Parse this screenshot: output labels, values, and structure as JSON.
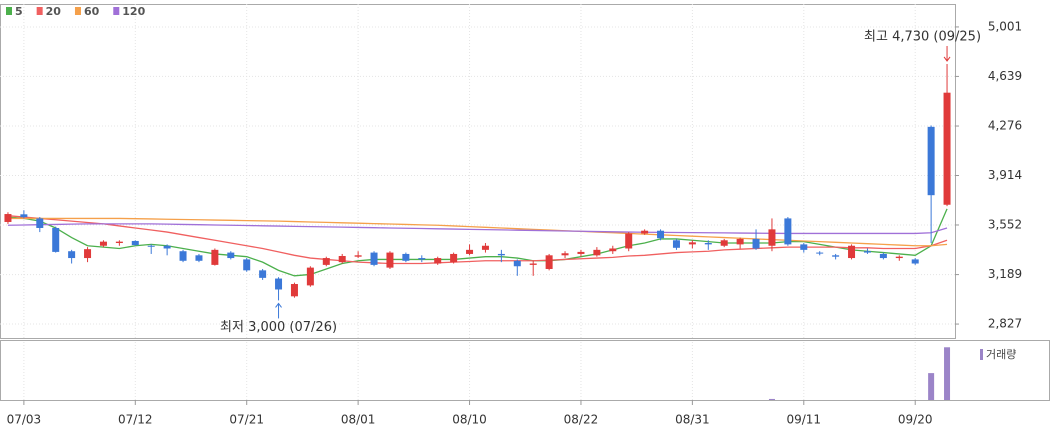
{
  "chart_data": {
    "type": "candlestick",
    "categories": [
      null,
      "07/03",
      null,
      null,
      null,
      null,
      null,
      null,
      "07/12",
      null,
      null,
      null,
      null,
      null,
      null,
      "07/21",
      null,
      null,
      null,
      null,
      null,
      null,
      "08/01",
      null,
      null,
      null,
      null,
      null,
      null,
      "08/10",
      null,
      null,
      null,
      null,
      null,
      null,
      "08/22",
      null,
      null,
      null,
      null,
      null,
      null,
      "08/31",
      null,
      null,
      null,
      null,
      null,
      null,
      "09/11",
      null,
      null,
      null,
      null,
      null,
      null,
      "09/20",
      null,
      null
    ],
    "ohlc": {
      "open": [
        3574,
        3630,
        3600,
        3530,
        3360,
        3310,
        3400,
        3420,
        3435,
        3400,
        3400,
        3360,
        3330,
        3260,
        3350,
        3300,
        3220,
        3160,
        3030,
        3110,
        3260,
        3280,
        3320,
        3350,
        3240,
        3340,
        3310,
        3270,
        3280,
        3340,
        3370,
        3340,
        3290,
        3260,
        3230,
        3330,
        3340,
        3330,
        3360,
        3380,
        3490,
        3510,
        3440,
        3410,
        3420,
        3400,
        3410,
        3450,
        3400,
        3600,
        3410,
        3350,
        3330,
        3310,
        3360,
        3340,
        3310,
        3300,
        4270,
        3700
      ],
      "high": [
        3645,
        3660,
        3610,
        3540,
        3370,
        3390,
        3440,
        3440,
        3440,
        3410,
        3410,
        3370,
        3340,
        3380,
        3360,
        3310,
        3230,
        3170,
        3130,
        3250,
        3320,
        3340,
        3360,
        3360,
        3360,
        3350,
        3330,
        3320,
        3350,
        3410,
        3420,
        3370,
        3300,
        3290,
        3340,
        3360,
        3370,
        3390,
        3400,
        3500,
        3520,
        3520,
        3450,
        3440,
        3440,
        3450,
        3460,
        3520,
        3600,
        3610,
        3420,
        3360,
        3340,
        3410,
        3380,
        3350,
        3330,
        3310,
        4280,
        4730
      ],
      "low": [
        3560,
        3600,
        3500,
        3350,
        3270,
        3280,
        3390,
        3400,
        3400,
        3340,
        3330,
        3280,
        3280,
        3255,
        3300,
        3210,
        3150,
        3000,
        3020,
        3100,
        3250,
        3270,
        3310,
        3250,
        3230,
        3280,
        3280,
        3260,
        3270,
        3330,
        3350,
        3280,
        3180,
        3180,
        3220,
        3310,
        3320,
        3320,
        3340,
        3360,
        3480,
        3440,
        3370,
        3380,
        3370,
        3390,
        3380,
        3370,
        3360,
        3400,
        3350,
        3330,
        3300,
        3300,
        3340,
        3300,
        3290,
        3260,
        3420,
        3690
      ],
      "close": [
        3632,
        3610,
        3530,
        3355,
        3310,
        3375,
        3430,
        3430,
        3405,
        3395,
        3380,
        3290,
        3290,
        3370,
        3310,
        3220,
        3165,
        3080,
        3120,
        3240,
        3310,
        3325,
        3330,
        3260,
        3350,
        3290,
        3300,
        3310,
        3340,
        3370,
        3400,
        3330,
        3250,
        3270,
        3330,
        3345,
        3355,
        3370,
        3380,
        3490,
        3510,
        3455,
        3385,
        3425,
        3410,
        3440,
        3450,
        3380,
        3520,
        3410,
        3370,
        3345,
        3320,
        3400,
        3350,
        3310,
        3320,
        3270,
        3770,
        4520
      ]
    },
    "up_color": "#e03a3a",
    "down_color": "#3b78d8",
    "series": [
      {
        "name": "5",
        "color": "#4cb04c",
        "values": [
          3610,
          3600,
          3580,
          3530,
          3460,
          3400,
          3390,
          3380,
          3400,
          3410,
          3400,
          3380,
          3360,
          3340,
          3330,
          3320,
          3280,
          3220,
          3180,
          3190,
          3230,
          3270,
          3290,
          3300,
          3300,
          3300,
          3300,
          3300,
          3300,
          3310,
          3320,
          3320,
          3310,
          3290,
          3290,
          3300,
          3320,
          3340,
          3370,
          3400,
          3420,
          3450,
          3450,
          3440,
          3430,
          3420,
          3420,
          3420,
          3420,
          3430,
          3430,
          3410,
          3390,
          3370,
          3360,
          3350,
          3340,
          3330,
          3400,
          3670
        ]
      },
      {
        "name": "20",
        "color": "#f06060",
        "values": [
          3620,
          3610,
          3600,
          3590,
          3580,
          3570,
          3560,
          3545,
          3530,
          3515,
          3500,
          3480,
          3460,
          3440,
          3420,
          3400,
          3380,
          3355,
          3330,
          3310,
          3300,
          3290,
          3280,
          3275,
          3270,
          3270,
          3270,
          3275,
          3280,
          3285,
          3290,
          3290,
          3290,
          3290,
          3295,
          3300,
          3305,
          3310,
          3315,
          3325,
          3330,
          3340,
          3350,
          3355,
          3360,
          3370,
          3375,
          3380,
          3385,
          3390,
          3390,
          3390,
          3390,
          3385,
          3385,
          3380,
          3380,
          3380,
          3400,
          3440
        ]
      },
      {
        "name": "60",
        "color": "#f5a04a",
        "values": [
          3600,
          3600,
          3600,
          3600,
          3600,
          3600,
          3600,
          3600,
          3598,
          3596,
          3594,
          3592,
          3590,
          3588,
          3586,
          3584,
          3582,
          3580,
          3577,
          3574,
          3571,
          3568,
          3565,
          3562,
          3559,
          3556,
          3553,
          3550,
          3545,
          3540,
          3535,
          3530,
          3525,
          3520,
          3515,
          3510,
          3505,
          3500,
          3495,
          3490,
          3485,
          3480,
          3475,
          3470,
          3465,
          3460,
          3455,
          3450,
          3445,
          3440,
          3435,
          3430,
          3425,
          3420,
          3415,
          3410,
          3405,
          3400,
          3400,
          3410
        ]
      },
      {
        "name": "120",
        "color": "#a070d8",
        "values": [
          3550,
          3552,
          3554,
          3556,
          3558,
          3560,
          3560,
          3560,
          3560,
          3560,
          3558,
          3556,
          3554,
          3552,
          3550,
          3548,
          3546,
          3544,
          3542,
          3540,
          3538,
          3536,
          3534,
          3532,
          3530,
          3528,
          3526,
          3524,
          3522,
          3520,
          3518,
          3516,
          3514,
          3512,
          3510,
          3508,
          3506,
          3504,
          3502,
          3500,
          3499,
          3498,
          3497,
          3496,
          3495,
          3494,
          3493,
          3492,
          3491,
          3490,
          3490,
          3490,
          3490,
          3490,
          3490,
          3490,
          3490,
          3490,
          3495,
          3530
        ]
      }
    ],
    "volume": {
      "name": "거래량",
      "color": "#9b84c8",
      "ylim": [
        0,
        110
      ],
      "values": [
        0,
        0,
        0,
        0,
        0,
        0,
        0,
        0,
        0,
        0,
        0,
        0,
        0,
        0,
        0,
        0,
        0,
        0,
        0,
        0,
        0,
        0,
        0,
        0,
        0,
        0,
        0,
        0,
        0,
        0,
        0,
        0,
        0,
        0,
        0,
        0,
        0,
        0,
        0,
        0,
        0,
        0,
        0,
        0,
        0,
        0,
        0,
        0,
        2,
        0,
        0,
        0,
        0,
        0,
        0,
        0,
        0,
        0,
        51,
        100
      ]
    },
    "ylim": [
      2725,
      5125
    ],
    "yticks": [
      {
        "value": 2827,
        "label": "2,827"
      },
      {
        "value": 3189,
        "label": "3,189"
      },
      {
        "value": 3552,
        "label": "3,552"
      },
      {
        "value": 3914,
        "label": "3,914"
      },
      {
        "value": 4276,
        "label": "4,276"
      },
      {
        "value": 4639,
        "label": "4,639"
      },
      {
        "value": 5001,
        "label": "5,001"
      }
    ],
    "grid": true,
    "annotations": {
      "high": {
        "label": "최고 4,730 (09/25)",
        "value": 4730,
        "color": "#e03a3a"
      },
      "low": {
        "label": "최저 3,000 (07/26)",
        "value": 3000,
        "color": "#3b78d8"
      }
    }
  }
}
